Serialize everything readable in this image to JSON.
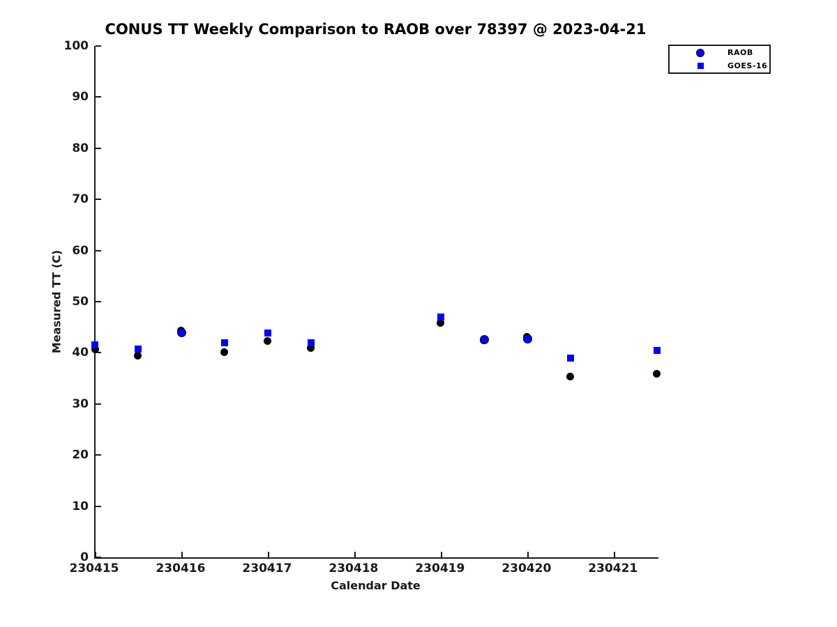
{
  "title": "CONUS TT Weekly Comparison to RAOB over 78397 @ 2023-04-21",
  "colors": {
    "marker_blue": "#0000ff",
    "marker_black": "#000000",
    "axis": "#1a1a1a",
    "background": "#ffffff"
  },
  "chart_data": {
    "type": "scatter",
    "title": "CONUS TT Weekly Comparison to RAOB over 78397 @ 2023-04-21",
    "xlabel": "Calendar Date",
    "ylabel": "Measured TT (C)",
    "grid": false,
    "x_range": [
      230415,
      230421.51
    ],
    "y_range": [
      0,
      100
    ],
    "x_tick_values": [
      230415,
      230416,
      230417,
      230418,
      230419,
      230420,
      230421
    ],
    "x_tick_labels": [
      "230415",
      "230416",
      "230417",
      "230418",
      "230419",
      "230420",
      "230421"
    ],
    "y_ticks": [
      0,
      10,
      20,
      30,
      40,
      50,
      60,
      70,
      80,
      90,
      100
    ],
    "legend": {
      "position": "top-right",
      "entries": [
        {
          "label": "RAOB",
          "marker": "circle",
          "fill": "#0000ff",
          "edge": "#000000"
        },
        {
          "label": "GOES-16",
          "marker": "square",
          "fill": "#0000ff",
          "edge": "#0000ff"
        }
      ]
    },
    "series": [
      {
        "name": "raob-black-circles",
        "marker": "circle",
        "fill": "#000000",
        "edge": "#000000",
        "points": [
          [
            230415.0,
            40.7
          ],
          [
            230415.5,
            39.4
          ],
          [
            230416.0,
            44.4
          ],
          [
            230416.5,
            40.1
          ],
          [
            230417.0,
            42.3
          ],
          [
            230417.5,
            41.0
          ],
          [
            230419.0,
            45.9
          ],
          [
            230419.5,
            42.4
          ],
          [
            230420.0,
            43.1
          ],
          [
            230420.5,
            35.3
          ],
          [
            230421.5,
            35.9
          ]
        ]
      },
      {
        "name": "raob-blue-circles",
        "marker": "circle",
        "fill": "#0000ff",
        "edge": "#000000",
        "points": [
          [
            230416.0,
            44.1
          ],
          [
            230419.5,
            42.7
          ],
          [
            230420.0,
            42.8
          ]
        ]
      },
      {
        "name": "goes16-squares",
        "marker": "square",
        "fill": "#0000ff",
        "edge": "#0000ff",
        "points": [
          [
            230415.0,
            41.5
          ],
          [
            230415.5,
            40.8
          ],
          [
            230416.5,
            41.9
          ],
          [
            230417.0,
            43.9
          ],
          [
            230417.5,
            41.9
          ],
          [
            230419.0,
            47.0
          ],
          [
            230420.5,
            38.9
          ],
          [
            230421.5,
            40.4
          ]
        ]
      }
    ]
  }
}
